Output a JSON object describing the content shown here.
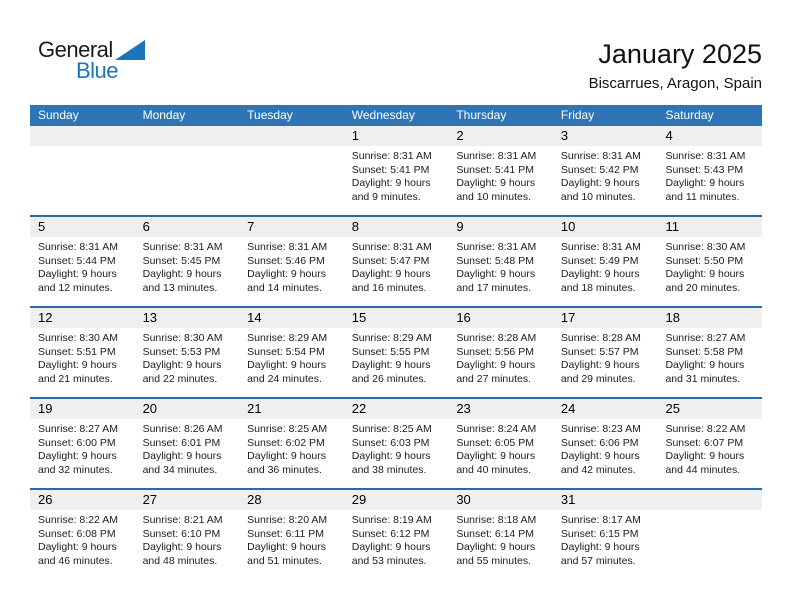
{
  "logo": {
    "line1": "General",
    "line2": "Blue",
    "triangle_color": "#1B75BC"
  },
  "header": {
    "title": "January 2025",
    "location": "Biscarrues, Aragon, Spain"
  },
  "colors": {
    "header_bar": "#2E75B6",
    "week_separator": "#2A6AA9",
    "day_band": "#EFEFEF",
    "weekday_text": "#FFFFFF"
  },
  "weekdays": [
    "Sunday",
    "Monday",
    "Tuesday",
    "Wednesday",
    "Thursday",
    "Friday",
    "Saturday"
  ],
  "weeks": [
    {
      "cells": [
        {
          "day": "",
          "sunrise": "",
          "sunset": "",
          "daylight": ""
        },
        {
          "day": "",
          "sunrise": "",
          "sunset": "",
          "daylight": ""
        },
        {
          "day": "",
          "sunrise": "",
          "sunset": "",
          "daylight": ""
        },
        {
          "day": "1",
          "sunrise": "Sunrise: 8:31 AM",
          "sunset": "Sunset: 5:41 PM",
          "daylight": "Daylight: 9 hours and 9 minutes."
        },
        {
          "day": "2",
          "sunrise": "Sunrise: 8:31 AM",
          "sunset": "Sunset: 5:41 PM",
          "daylight": "Daylight: 9 hours and 10 minutes."
        },
        {
          "day": "3",
          "sunrise": "Sunrise: 8:31 AM",
          "sunset": "Sunset: 5:42 PM",
          "daylight": "Daylight: 9 hours and 10 minutes."
        },
        {
          "day": "4",
          "sunrise": "Sunrise: 8:31 AM",
          "sunset": "Sunset: 5:43 PM",
          "daylight": "Daylight: 9 hours and 11 minutes."
        }
      ]
    },
    {
      "cells": [
        {
          "day": "5",
          "sunrise": "Sunrise: 8:31 AM",
          "sunset": "Sunset: 5:44 PM",
          "daylight": "Daylight: 9 hours and 12 minutes."
        },
        {
          "day": "6",
          "sunrise": "Sunrise: 8:31 AM",
          "sunset": "Sunset: 5:45 PM",
          "daylight": "Daylight: 9 hours and 13 minutes."
        },
        {
          "day": "7",
          "sunrise": "Sunrise: 8:31 AM",
          "sunset": "Sunset: 5:46 PM",
          "daylight": "Daylight: 9 hours and 14 minutes."
        },
        {
          "day": "8",
          "sunrise": "Sunrise: 8:31 AM",
          "sunset": "Sunset: 5:47 PM",
          "daylight": "Daylight: 9 hours and 16 minutes."
        },
        {
          "day": "9",
          "sunrise": "Sunrise: 8:31 AM",
          "sunset": "Sunset: 5:48 PM",
          "daylight": "Daylight: 9 hours and 17 minutes."
        },
        {
          "day": "10",
          "sunrise": "Sunrise: 8:31 AM",
          "sunset": "Sunset: 5:49 PM",
          "daylight": "Daylight: 9 hours and 18 minutes."
        },
        {
          "day": "11",
          "sunrise": "Sunrise: 8:30 AM",
          "sunset": "Sunset: 5:50 PM",
          "daylight": "Daylight: 9 hours and 20 minutes."
        }
      ]
    },
    {
      "cells": [
        {
          "day": "12",
          "sunrise": "Sunrise: 8:30 AM",
          "sunset": "Sunset: 5:51 PM",
          "daylight": "Daylight: 9 hours and 21 minutes."
        },
        {
          "day": "13",
          "sunrise": "Sunrise: 8:30 AM",
          "sunset": "Sunset: 5:53 PM",
          "daylight": "Daylight: 9 hours and 22 minutes."
        },
        {
          "day": "14",
          "sunrise": "Sunrise: 8:29 AM",
          "sunset": "Sunset: 5:54 PM",
          "daylight": "Daylight: 9 hours and 24 minutes."
        },
        {
          "day": "15",
          "sunrise": "Sunrise: 8:29 AM",
          "sunset": "Sunset: 5:55 PM",
          "daylight": "Daylight: 9 hours and 26 minutes."
        },
        {
          "day": "16",
          "sunrise": "Sunrise: 8:28 AM",
          "sunset": "Sunset: 5:56 PM",
          "daylight": "Daylight: 9 hours and 27 minutes."
        },
        {
          "day": "17",
          "sunrise": "Sunrise: 8:28 AM",
          "sunset": "Sunset: 5:57 PM",
          "daylight": "Daylight: 9 hours and 29 minutes."
        },
        {
          "day": "18",
          "sunrise": "Sunrise: 8:27 AM",
          "sunset": "Sunset: 5:58 PM",
          "daylight": "Daylight: 9 hours and 31 minutes."
        }
      ]
    },
    {
      "cells": [
        {
          "day": "19",
          "sunrise": "Sunrise: 8:27 AM",
          "sunset": "Sunset: 6:00 PM",
          "daylight": "Daylight: 9 hours and 32 minutes."
        },
        {
          "day": "20",
          "sunrise": "Sunrise: 8:26 AM",
          "sunset": "Sunset: 6:01 PM",
          "daylight": "Daylight: 9 hours and 34 minutes."
        },
        {
          "day": "21",
          "sunrise": "Sunrise: 8:25 AM",
          "sunset": "Sunset: 6:02 PM",
          "daylight": "Daylight: 9 hours and 36 minutes."
        },
        {
          "day": "22",
          "sunrise": "Sunrise: 8:25 AM",
          "sunset": "Sunset: 6:03 PM",
          "daylight": "Daylight: 9 hours and 38 minutes."
        },
        {
          "day": "23",
          "sunrise": "Sunrise: 8:24 AM",
          "sunset": "Sunset: 6:05 PM",
          "daylight": "Daylight: 9 hours and 40 minutes."
        },
        {
          "day": "24",
          "sunrise": "Sunrise: 8:23 AM",
          "sunset": "Sunset: 6:06 PM",
          "daylight": "Daylight: 9 hours and 42 minutes."
        },
        {
          "day": "25",
          "sunrise": "Sunrise: 8:22 AM",
          "sunset": "Sunset: 6:07 PM",
          "daylight": "Daylight: 9 hours and 44 minutes."
        }
      ]
    },
    {
      "cells": [
        {
          "day": "26",
          "sunrise": "Sunrise: 8:22 AM",
          "sunset": "Sunset: 6:08 PM",
          "daylight": "Daylight: 9 hours and 46 minutes."
        },
        {
          "day": "27",
          "sunrise": "Sunrise: 8:21 AM",
          "sunset": "Sunset: 6:10 PM",
          "daylight": "Daylight: 9 hours and 48 minutes."
        },
        {
          "day": "28",
          "sunrise": "Sunrise: 8:20 AM",
          "sunset": "Sunset: 6:11 PM",
          "daylight": "Daylight: 9 hours and 51 minutes."
        },
        {
          "day": "29",
          "sunrise": "Sunrise: 8:19 AM",
          "sunset": "Sunset: 6:12 PM",
          "daylight": "Daylight: 9 hours and 53 minutes."
        },
        {
          "day": "30",
          "sunrise": "Sunrise: 8:18 AM",
          "sunset": "Sunset: 6:14 PM",
          "daylight": "Daylight: 9 hours and 55 minutes."
        },
        {
          "day": "31",
          "sunrise": "Sunrise: 8:17 AM",
          "sunset": "Sunset: 6:15 PM",
          "daylight": "Daylight: 9 hours and 57 minutes."
        },
        {
          "day": "",
          "sunrise": "",
          "sunset": "",
          "daylight": ""
        }
      ]
    }
  ]
}
